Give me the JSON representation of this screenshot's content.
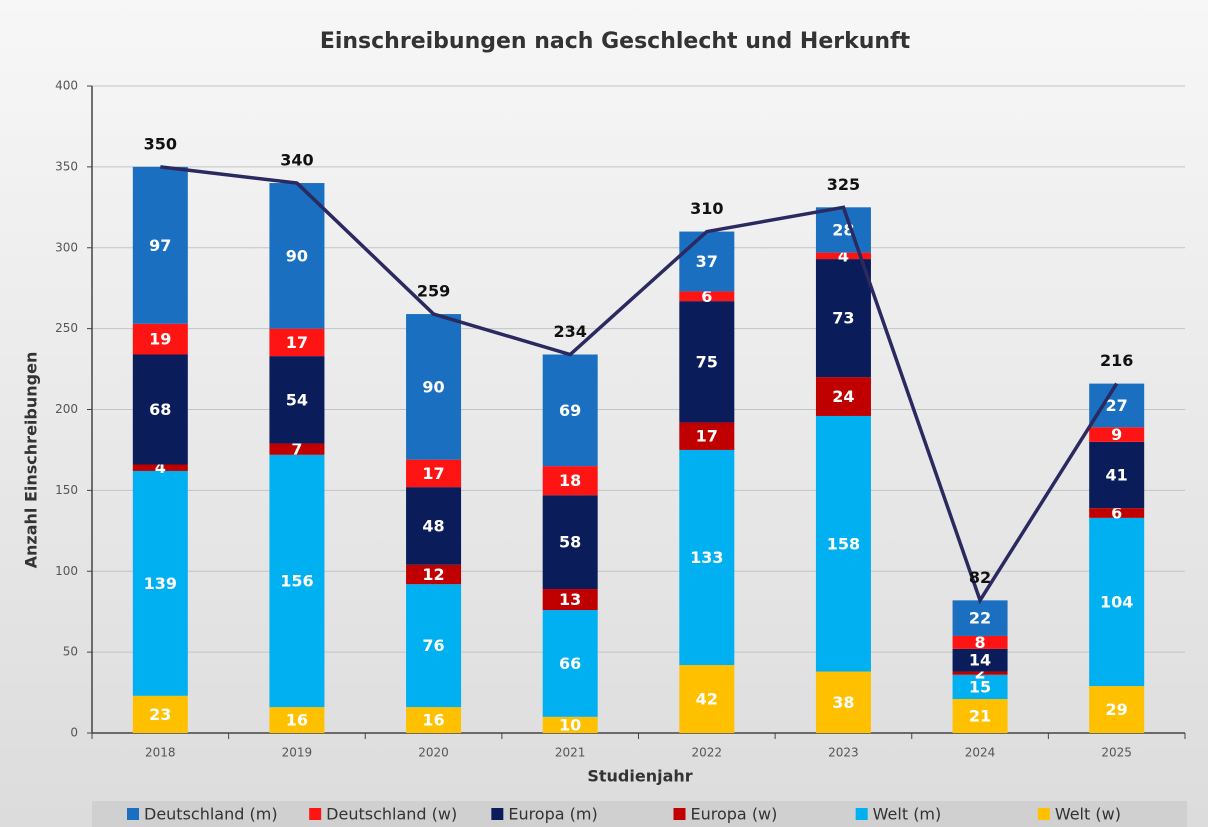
{
  "chart_data": {
    "type": "stacked_bar_line",
    "title": "Einschreibungen nach Geschlecht und Herkunft",
    "xlabel": "Studienjahr",
    "ylabel": "Anzahl Einschreibungen",
    "categories": [
      "2018",
      "2019",
      "2020",
      "2021",
      "2022",
      "2023",
      "2024",
      "2025"
    ],
    "series": [
      {
        "name": "Deutschland (m)",
        "color": "#1a6fc0",
        "values": [
          97,
          90,
          90,
          69,
          37,
          28,
          22,
          27
        ]
      },
      {
        "name": "Deutschland (w)",
        "color": "#ff1414",
        "values": [
          19,
          17,
          17,
          18,
          6,
          4,
          8,
          9
        ]
      },
      {
        "name": "Europa (m)",
        "color": "#0b1c5a",
        "values": [
          68,
          54,
          48,
          58,
          75,
          73,
          14,
          41
        ]
      },
      {
        "name": "Europa (w)",
        "color": "#c00000",
        "values": [
          4,
          7,
          12,
          13,
          17,
          24,
          2,
          6
        ]
      },
      {
        "name": "Welt (m)",
        "color": "#00b0f0",
        "values": [
          139,
          156,
          76,
          66,
          133,
          158,
          15,
          104
        ]
      },
      {
        "name": "Welt (w)",
        "color": "#ffc000",
        "values": [
          23,
          16,
          16,
          10,
          42,
          38,
          21,
          29
        ]
      }
    ],
    "line_values": [
      350,
      340,
      259,
      234,
      310,
      325,
      82,
      216
    ],
    "line_color": "#2a2960",
    "ylim": [
      0,
      400
    ],
    "yticks": [
      0,
      50,
      100,
      150,
      200,
      250,
      300,
      350,
      400
    ],
    "grid": true,
    "legend": "bottom"
  }
}
